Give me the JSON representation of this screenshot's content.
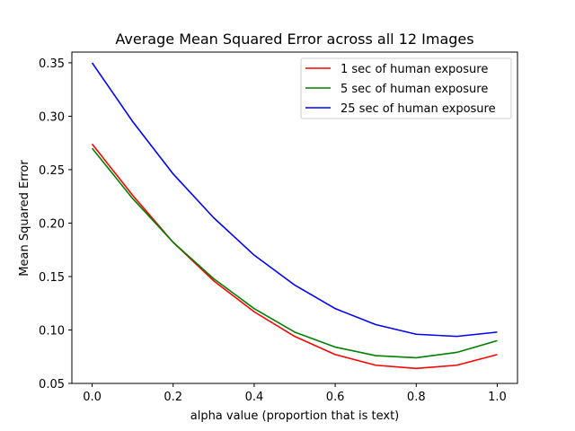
{
  "chart_data": {
    "type": "line",
    "title": "Average Mean Squared Error across all 12 Images",
    "xlabel": "alpha value (proportion that is text)",
    "ylabel": "Mean Squared Error",
    "xlim": [
      -0.05,
      1.05
    ],
    "ylim": [
      0.05,
      0.36
    ],
    "xticks": [
      0.0,
      0.2,
      0.4,
      0.6,
      0.8,
      1.0
    ],
    "xtick_labels": [
      "0.0",
      "0.2",
      "0.4",
      "0.6",
      "0.8",
      "1.0"
    ],
    "yticks": [
      0.05,
      0.1,
      0.15,
      0.2,
      0.25,
      0.3,
      0.35
    ],
    "ytick_labels": [
      "0.05",
      "0.10",
      "0.15",
      "0.20",
      "0.25",
      "0.30",
      "0.35"
    ],
    "legend_position": "top-right",
    "x": [
      0.0,
      0.1,
      0.2,
      0.3,
      0.4,
      0.5,
      0.6,
      0.7,
      0.8,
      0.9,
      1.0
    ],
    "series": [
      {
        "name": "1 sec of human exposure",
        "color": "#ff0000",
        "values": [
          0.274,
          0.226,
          0.182,
          0.146,
          0.117,
          0.094,
          0.077,
          0.067,
          0.064,
          0.067,
          0.077
        ]
      },
      {
        "name": "5 sec of human exposure",
        "color": "#008000",
        "values": [
          0.27,
          0.223,
          0.182,
          0.148,
          0.12,
          0.098,
          0.084,
          0.076,
          0.074,
          0.079,
          0.09
        ]
      },
      {
        "name": "25 sec of human exposure",
        "color": "#0000ff",
        "values": [
          0.35,
          0.295,
          0.246,
          0.205,
          0.17,
          0.142,
          0.12,
          0.105,
          0.096,
          0.094,
          0.098
        ]
      }
    ]
  }
}
